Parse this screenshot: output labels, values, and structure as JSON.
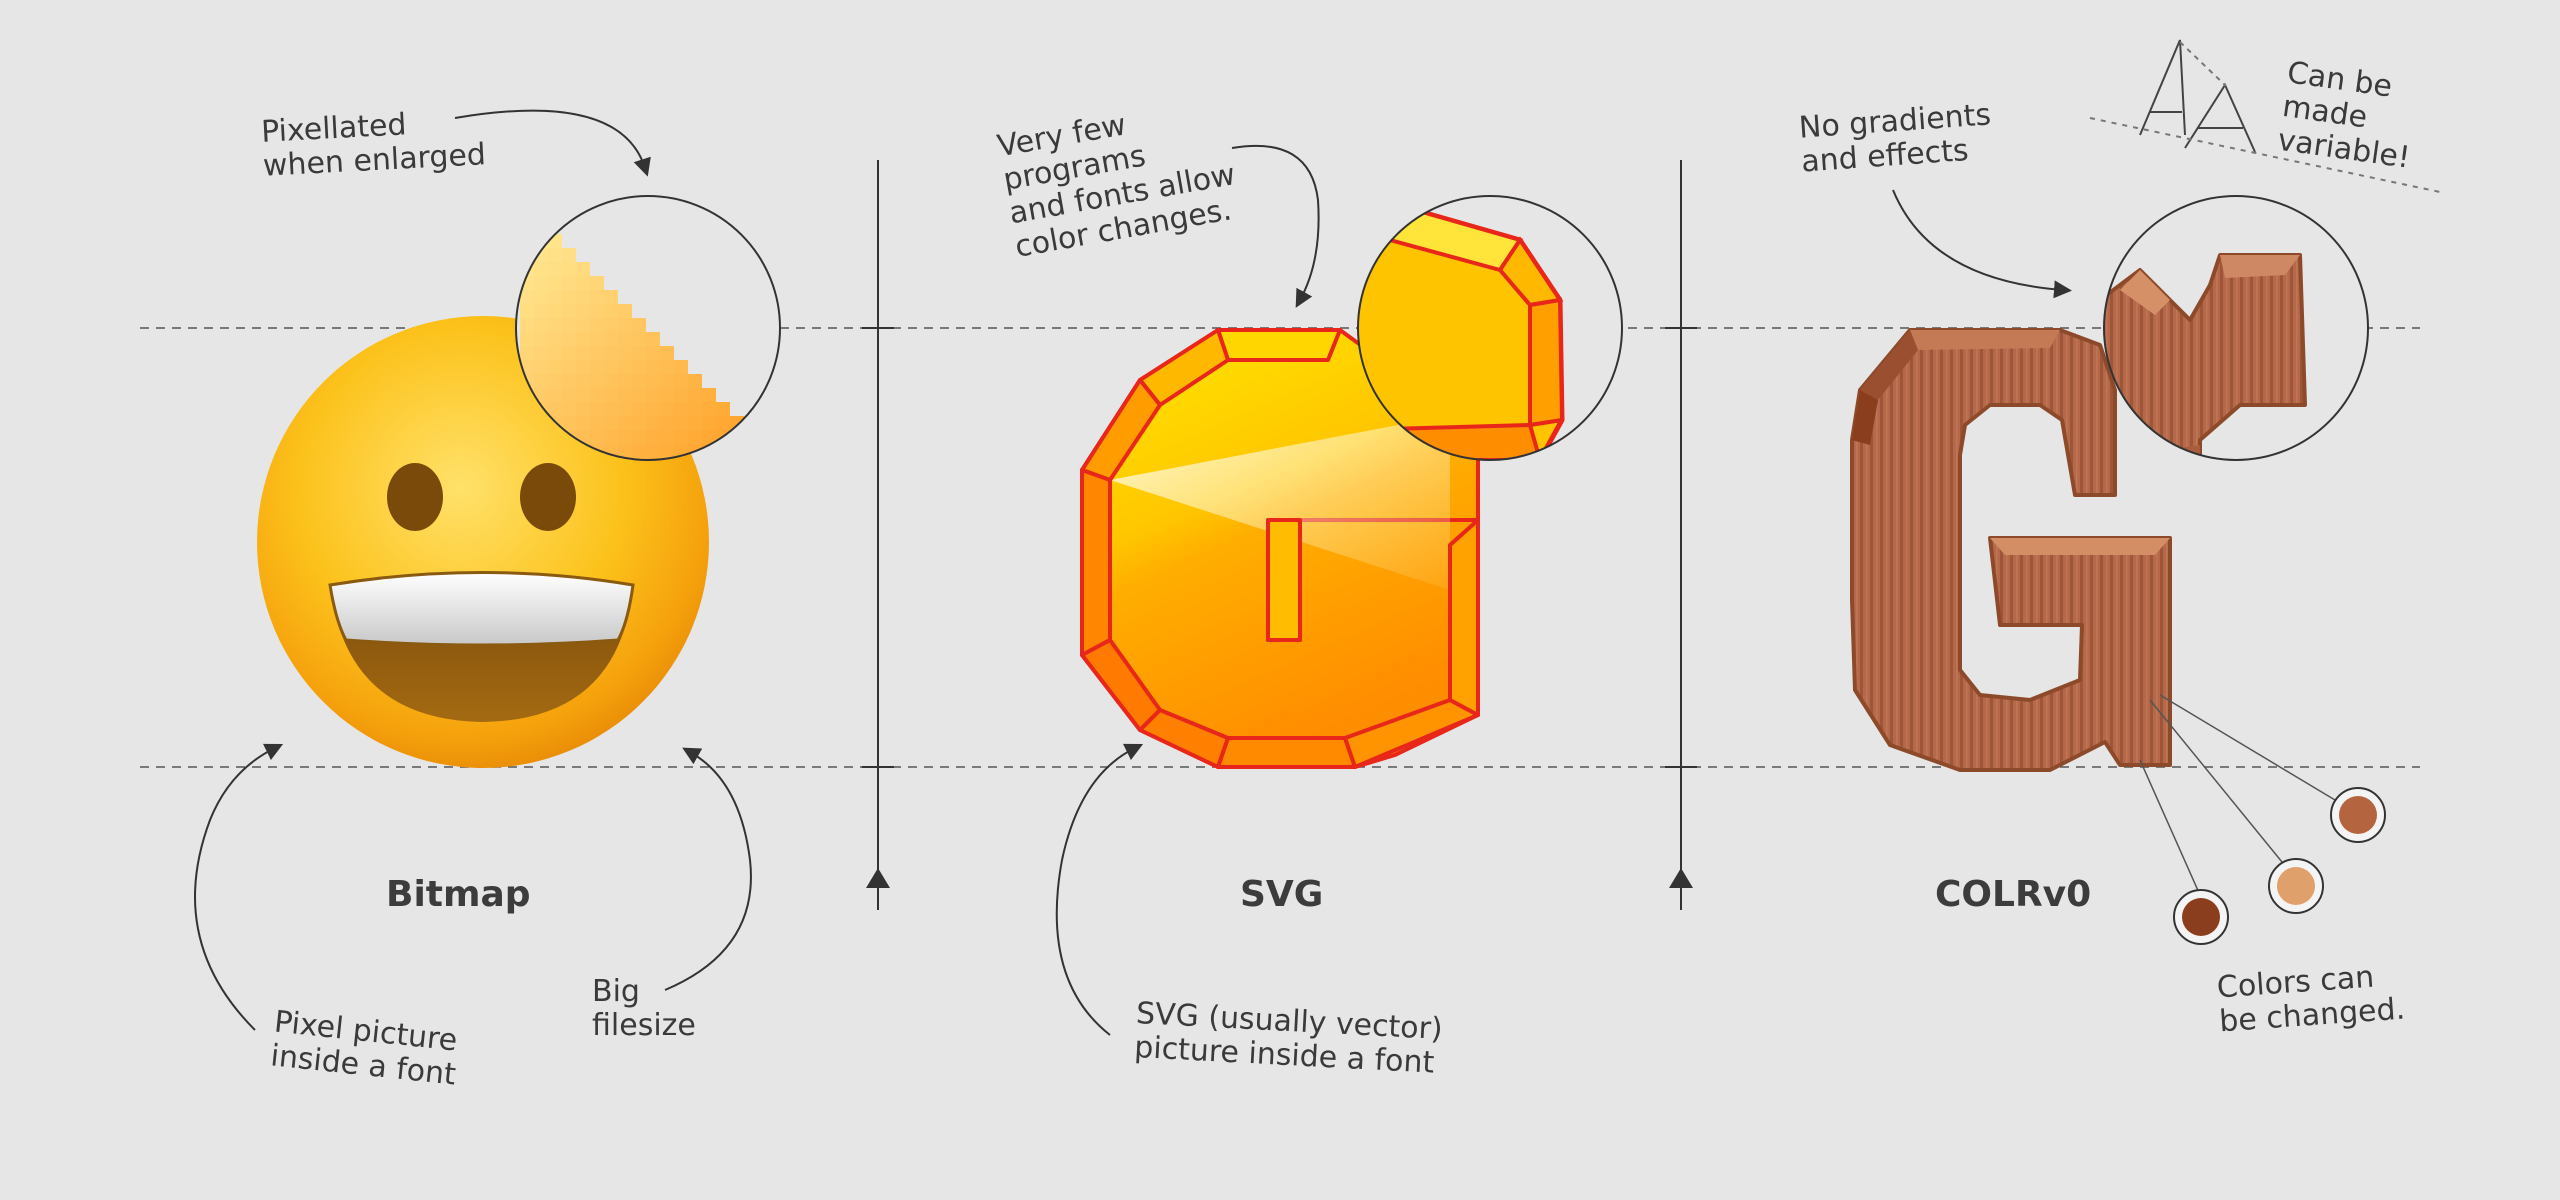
{
  "columns": [
    {
      "title": "Bitmap",
      "annotations": {
        "top": "Pixellated\nwhen enlarged",
        "bottom_left": "Pixel picture\ninside a font",
        "bottom_right": "Big\nfilesize"
      }
    },
    {
      "title": "SVG",
      "annotations": {
        "top": "Very few\nprograms\nand fonts allow\ncolor changes.",
        "bottom": "SVG (usually vector)\npicture inside a font"
      }
    },
    {
      "title": "COLRv0",
      "annotations": {
        "top_left": "No gradients\nand effects",
        "top_right": "Can be\nmade\nvariable!",
        "bottom_right": "Colors can\nbe changed."
      },
      "variable_sample_text": "AA",
      "palette": [
        "#8b3e1d",
        "#e0a06c",
        "#b4653f"
      ]
    }
  ],
  "colors": {
    "background": "#e6e6e6",
    "line": "#333333",
    "emoji_yellow": "#fcc21b",
    "svg_orange": "#ff8b1a",
    "svg_outline": "#e8261a",
    "colr_brown": "#b5694a"
  }
}
